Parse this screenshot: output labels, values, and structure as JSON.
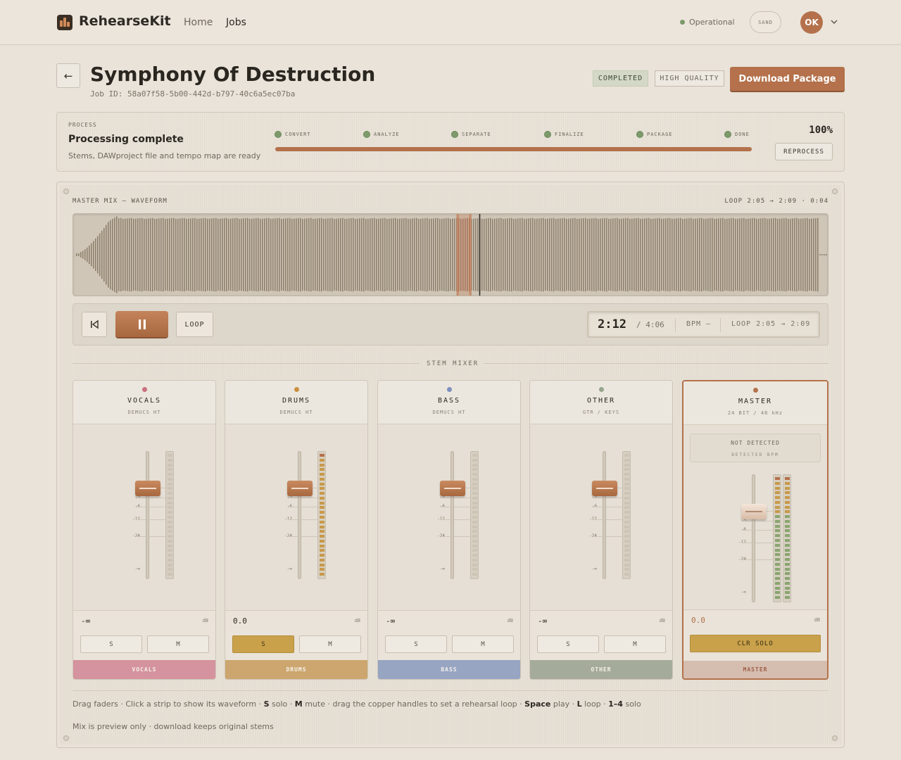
{
  "app": {
    "name": "RehearseKit"
  },
  "nav": {
    "home": "Home",
    "jobs": "Jobs"
  },
  "status": {
    "text": "Operational",
    "color": "#7c9a6a"
  },
  "theme": {
    "label": "SAND"
  },
  "user": {
    "initials": "OK"
  },
  "job": {
    "title": "Symphony Of Destruction",
    "id_text": "Job ID: 58a07f58-5b00-442d-b797-40c6a5ec07ba",
    "badge_status": "COMPLETED",
    "badge_quality": "HIGH QUALITY",
    "download_label": "Download Package"
  },
  "process": {
    "label": "PROCESS",
    "title": "Processing complete",
    "subtitle": "Stems, DAWproject file and tempo map are ready",
    "percent": "100%",
    "progress": 1.0,
    "steps": [
      "CONVERT",
      "ANALYZE",
      "SEPARATE",
      "FINALIZE",
      "PACKAGE",
      "DONE"
    ],
    "reprocess_label": "REPROCESS"
  },
  "waveform": {
    "label": "MASTER MIX — WAVEFORM",
    "loop_text": "LOOP 2:05 → 2:09 · 0:04",
    "playhead_fraction": 0.537,
    "loop_start_fraction": 0.508,
    "loop_end_fraction": 0.525
  },
  "transport": {
    "loop_label": "LOOP",
    "time": "2:12",
    "duration": "/ 4:06",
    "bpm": "BPM —",
    "loop": "LOOP 2:05 → 2:09"
  },
  "mixer": {
    "label": "STEM MIXER",
    "scale": [
      "0",
      "-3",
      "-6",
      "-12",
      "-24",
      "-∞"
    ],
    "strips": [
      {
        "name": "VOCALS",
        "sub": "DEMUCS HT",
        "db": "-∞",
        "unit": "dB",
        "solo": "S",
        "mute": "M",
        "tab": "VOCALS",
        "color": "#d4939e",
        "dot": "#c9707e",
        "solo_on": false,
        "meter_level": 0.0
      },
      {
        "name": "DRUMS",
        "sub": "DEMUCS HT",
        "db": "0.0",
        "unit": "dB",
        "solo": "S",
        "mute": "M",
        "tab": "DRUMS",
        "color": "#cca66e",
        "dot": "#c9913f",
        "solo_on": true,
        "meter_level": 1.0
      },
      {
        "name": "BASS",
        "sub": "DEMUCS HT",
        "db": "-∞",
        "unit": "dB",
        "solo": "S",
        "mute": "M",
        "tab": "BASS",
        "color": "#97a4c2",
        "dot": "#7d8fbf",
        "solo_on": false,
        "meter_level": 0.0
      },
      {
        "name": "OTHER",
        "sub": "GTR / KEYS",
        "db": "-∞",
        "unit": "dB",
        "solo": "S",
        "mute": "M",
        "tab": "OTHER",
        "color": "#a5ab9b",
        "dot": "#97a58d",
        "solo_on": false,
        "meter_level": 0.0
      }
    ],
    "master": {
      "name": "MASTER",
      "sub": "24 BIT / 48 kHz",
      "detect_a": "NOT DETECTED",
      "detect_b": "DETECTED BPM",
      "db": "0.0",
      "unit": "dB",
      "clr_solo": "CLR SOLO",
      "tab": "MASTER",
      "color": "#d5bdaf",
      "dot": "#b4714b"
    }
  },
  "footer": {
    "hint_parts": [
      "Drag faders · Click a strip to show its waveform · ",
      "S",
      " solo · ",
      "M",
      " mute · drag the copper handles to set a rehearsal loop · ",
      "Space",
      " play · ",
      "L",
      " loop · ",
      "1–4",
      " solo"
    ],
    "note": "Mix is preview only · download keeps original stems"
  },
  "colors": {
    "accent": "#b4714b",
    "solo": "#c9a14a"
  }
}
